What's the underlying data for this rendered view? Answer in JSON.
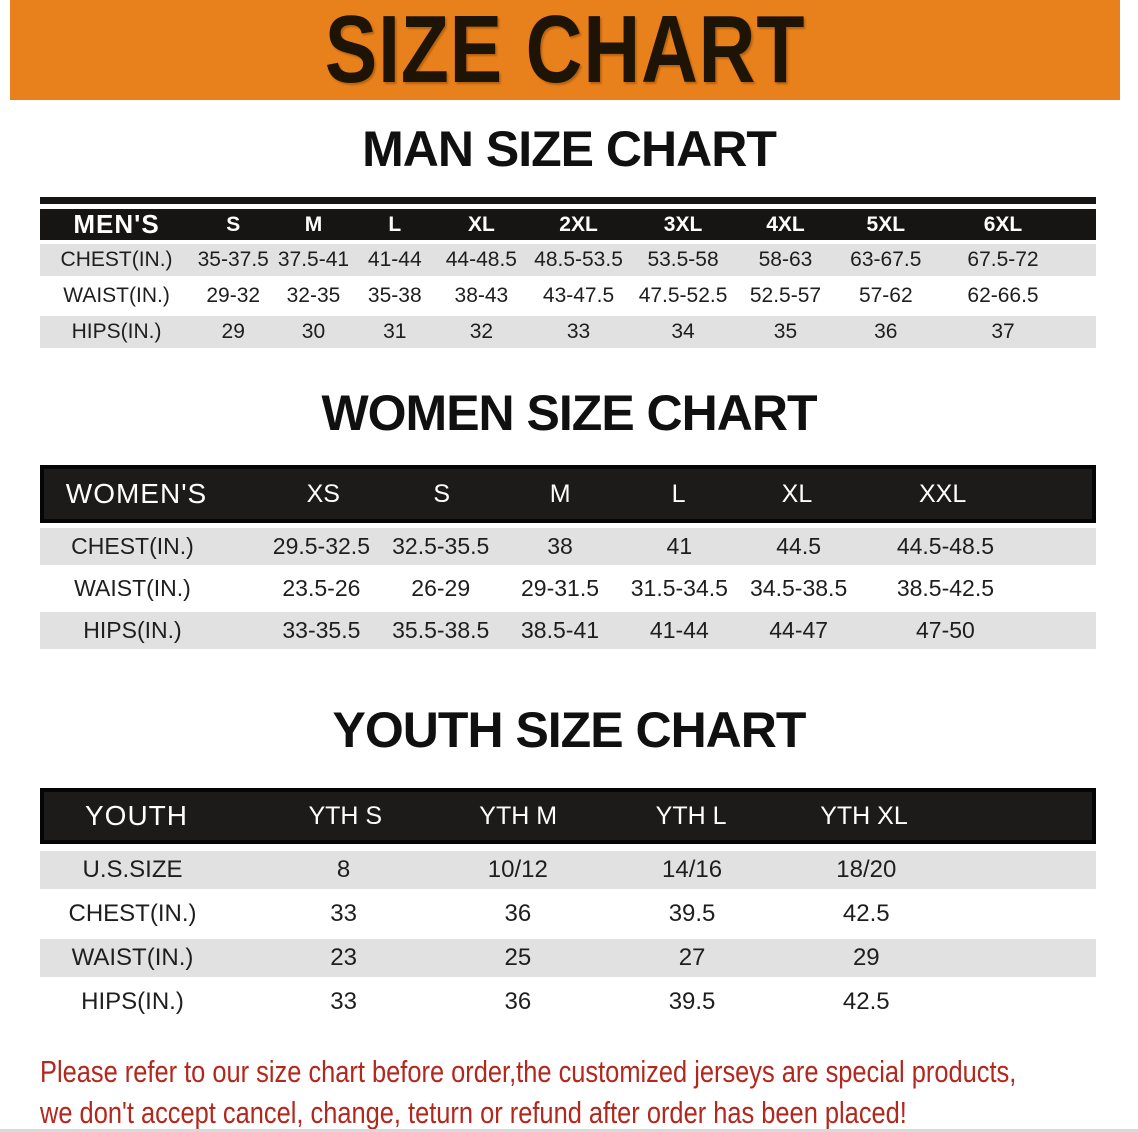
{
  "banner": {
    "title": "SIZE CHART"
  },
  "colors": {
    "banner_bg": "#E8811B",
    "banner_text": "#1E1405",
    "table_header_bg": "#171414",
    "row_shade": "#E1E1E1",
    "disclaimer_text": "#B3281E"
  },
  "sections": {
    "men": {
      "heading": "MAN SIZE CHART",
      "table": {
        "header": [
          "MEN'S",
          "S",
          "M",
          "L",
          "XL",
          "2XL",
          "3XL",
          "4XL",
          "5XL",
          "6XL"
        ],
        "rows": [
          [
            "CHEST(IN.)",
            "35-37.5",
            "37.5-41",
            "41-44",
            "44-48.5",
            "48.5-53.5",
            "53.5-58",
            "58-63",
            "63-67.5",
            "67.5-72"
          ],
          [
            "WAIST(IN.)",
            "29-32",
            "32-35",
            "35-38",
            "38-43",
            "43-47.5",
            "47.5-52.5",
            "52.5-57",
            "57-62",
            "62-66.5"
          ],
          [
            "HIPS(IN.)",
            "29",
            "30",
            "31",
            "32",
            "33",
            "34",
            "35",
            "36",
            "37"
          ]
        ]
      }
    },
    "women": {
      "heading": "WOMEN SIZE CHART",
      "table": {
        "header": [
          "WOMEN'S",
          "XS",
          "S",
          "M",
          "L",
          "XL",
          "XXL"
        ],
        "rows": [
          [
            "CHEST(IN.)",
            "29.5-32.5",
            "32.5-35.5",
            "38",
            "41",
            "44.5",
            "44.5-48.5"
          ],
          [
            "WAIST(IN.)",
            "23.5-26",
            "26-29",
            "29-31.5",
            "31.5-34.5",
            "34.5-38.5",
            "38.5-42.5"
          ],
          [
            "HIPS(IN.)",
            "33-35.5",
            "35.5-38.5",
            "38.5-41",
            "41-44",
            "44-47",
            "47-50"
          ]
        ]
      }
    },
    "youth": {
      "heading": "YOUTH SIZE CHART",
      "table": {
        "header": [
          "YOUTH",
          "YTH S",
          "YTH M",
          "YTH L",
          "YTH XL"
        ],
        "rows": [
          [
            "U.S.SIZE",
            "8",
            "10/12",
            "14/16",
            "18/20"
          ],
          [
            "CHEST(IN.)",
            "33",
            "36",
            "39.5",
            "42.5"
          ],
          [
            "WAIST(IN.)",
            "23",
            "25",
            "27",
            "29"
          ],
          [
            "HIPS(IN.)",
            "33",
            "36",
            "39.5",
            "42.5"
          ]
        ]
      }
    }
  },
  "disclaimer": {
    "line1": "Please refer to our size chart before order,the customized jerseys are special products,",
    "line2": "we don't accept cancel, change, teturn or refund after order has been placed!"
  }
}
